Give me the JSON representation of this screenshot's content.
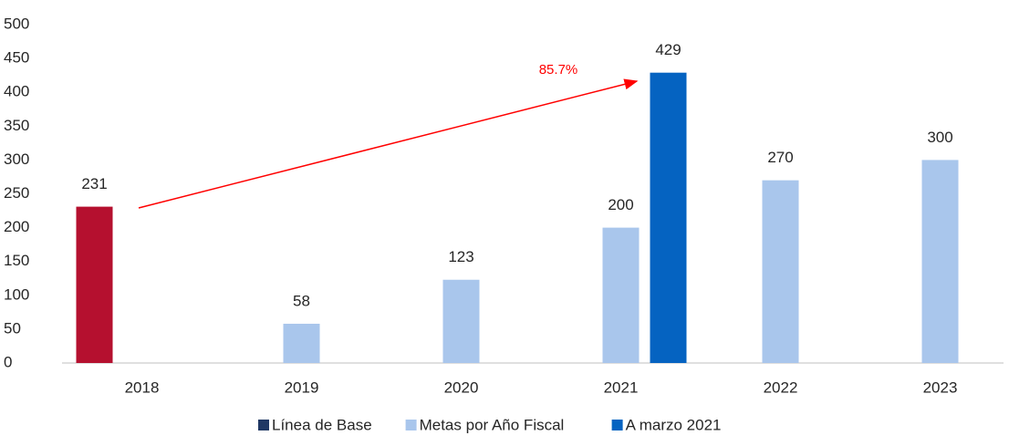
{
  "chart_data": {
    "type": "bar",
    "categories": [
      "2018",
      "2019",
      "2020",
      "2021",
      "2022",
      "2023"
    ],
    "series": [
      {
        "name": "Línea de Base",
        "color": "#b5102f",
        "legend_color": "#203864",
        "values": [
          231,
          null,
          null,
          null,
          null,
          null
        ]
      },
      {
        "name": "Metas por Año Fiscal",
        "color": "#a9c6ec",
        "values": [
          null,
          58,
          123,
          200,
          270,
          300
        ]
      },
      {
        "name": "A marzo 2021",
        "color": "#0563c1",
        "values": [
          null,
          null,
          null,
          429,
          null,
          null
        ]
      }
    ],
    "ylim": [
      0,
      500
    ],
    "yticks": [
      0,
      50,
      100,
      150,
      200,
      250,
      300,
      350,
      400,
      450,
      500
    ],
    "grid": false,
    "legend": "bottom",
    "annotation": {
      "text": "85.7%",
      "color": "#ff0000"
    }
  }
}
